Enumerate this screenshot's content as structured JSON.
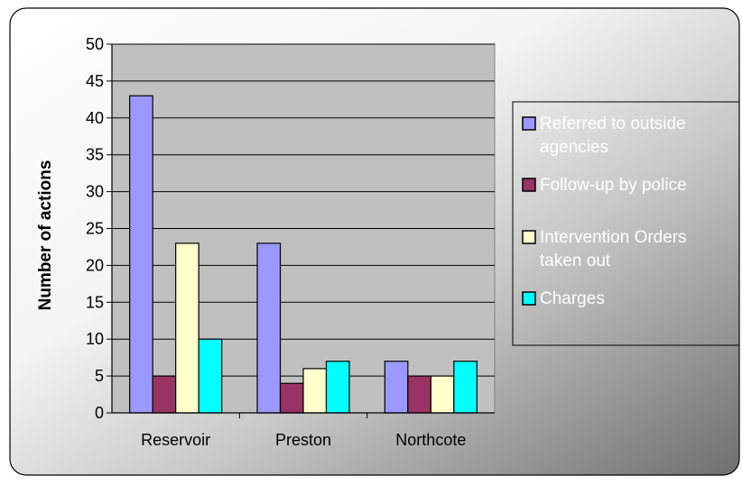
{
  "chart_data": {
    "type": "bar",
    "title": "",
    "xlabel": "",
    "ylabel": "Number of actions",
    "ylim": [
      0,
      50
    ],
    "ytick_step": 5,
    "yticks": [
      "0",
      "5",
      "10",
      "15",
      "20",
      "25",
      "30",
      "35",
      "40",
      "45",
      "50"
    ],
    "grid": true,
    "legend_position": "right",
    "categories": [
      "Reservoir",
      "Preston",
      "Northcote"
    ],
    "series": [
      {
        "name": "Referred to outside agencies",
        "values": [
          43,
          23,
          7
        ],
        "color": "#9999FF",
        "label_color": "#FFFFFF"
      },
      {
        "name": "Follow-up by police",
        "values": [
          5,
          4,
          5
        ],
        "color": "#993366",
        "label_color": "#FFFFFF"
      },
      {
        "name": "Intervention Orders taken out",
        "values": [
          23,
          6,
          5
        ],
        "color": "#FFFFCC",
        "label_color": "#FFFFFF"
      },
      {
        "name": "Charges",
        "values": [
          10,
          7,
          7
        ],
        "color": "#00FFFF",
        "label_color": "#FFFFFF"
      }
    ],
    "plot_background": "#C0C0C0"
  }
}
